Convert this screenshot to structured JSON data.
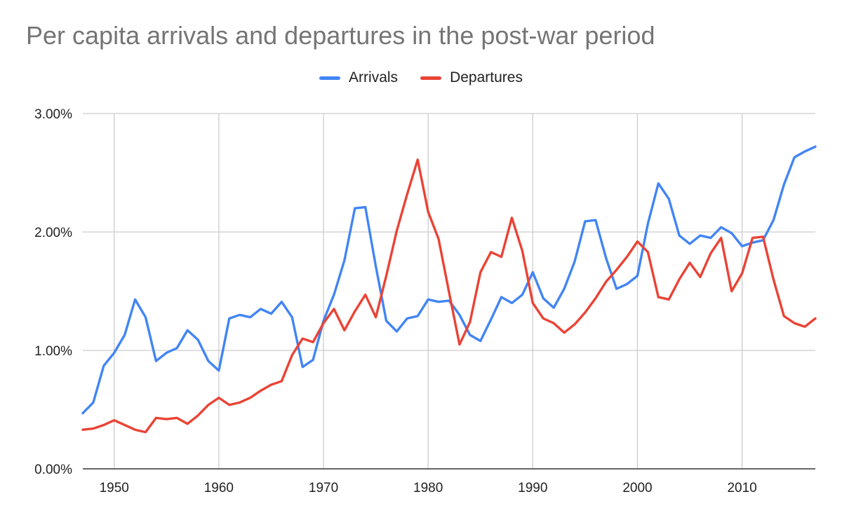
{
  "chart_data": {
    "type": "line",
    "title": "Per capita arrivals and departures in the post-war period",
    "xlabel": "",
    "ylabel": "",
    "xlim": [
      1947,
      2017
    ],
    "ylim": [
      0,
      0.03
    ],
    "x_ticks": [
      1950,
      1960,
      1970,
      1980,
      1990,
      2000,
      2010
    ],
    "y_ticks": [
      "0.00%",
      "1.00%",
      "2.00%",
      "3.00%"
    ],
    "y_tick_values": [
      0,
      0.01,
      0.02,
      0.03
    ],
    "legend_position": "top",
    "grid": true,
    "x": [
      1947,
      1948,
      1949,
      1950,
      1951,
      1952,
      1953,
      1954,
      1955,
      1956,
      1957,
      1958,
      1959,
      1960,
      1961,
      1962,
      1963,
      1964,
      1965,
      1966,
      1967,
      1968,
      1969,
      1970,
      1971,
      1972,
      1973,
      1974,
      1975,
      1976,
      1977,
      1978,
      1979,
      1980,
      1981,
      1982,
      1983,
      1984,
      1985,
      1986,
      1987,
      1988,
      1989,
      1990,
      1991,
      1992,
      1993,
      1994,
      1995,
      1996,
      1997,
      1998,
      1999,
      2000,
      2001,
      2002,
      2003,
      2004,
      2005,
      2006,
      2007,
      2008,
      2009,
      2010,
      2011,
      2012,
      2013,
      2014,
      2015,
      2016,
      2017
    ],
    "series": [
      {
        "name": "Arrivals",
        "color": "#4285f4",
        "values": [
          0.0047,
          0.0056,
          0.0087,
          0.0098,
          0.0113,
          0.0143,
          0.0128,
          0.0091,
          0.0098,
          0.0102,
          0.0117,
          0.0109,
          0.0091,
          0.0083,
          0.0127,
          0.013,
          0.0128,
          0.0135,
          0.0131,
          0.0141,
          0.0128,
          0.0086,
          0.0092,
          0.0125,
          0.0147,
          0.0176,
          0.022,
          0.0221,
          0.0171,
          0.0125,
          0.0116,
          0.0127,
          0.0129,
          0.0143,
          0.0141,
          0.0142,
          0.013,
          0.0113,
          0.0108,
          0.0126,
          0.0145,
          0.014,
          0.0147,
          0.0166,
          0.0144,
          0.0136,
          0.0152,
          0.0175,
          0.0209,
          0.021,
          0.0178,
          0.0152,
          0.0156,
          0.0163,
          0.0207,
          0.0241,
          0.0228,
          0.0197,
          0.019,
          0.0197,
          0.0195,
          0.0204,
          0.0199,
          0.0188,
          0.0191,
          0.0193,
          0.021,
          0.024,
          0.0263,
          0.0268,
          0.0272
        ]
      },
      {
        "name": "Departures",
        "color": "#ea4335",
        "values": [
          0.0033,
          0.0034,
          0.0037,
          0.0041,
          0.0037,
          0.0033,
          0.0031,
          0.0043,
          0.0042,
          0.0043,
          0.0038,
          0.0045,
          0.0054,
          0.006,
          0.0054,
          0.0056,
          0.006,
          0.0066,
          0.0071,
          0.0074,
          0.0096,
          0.011,
          0.0107,
          0.0123,
          0.0135,
          0.0117,
          0.0133,
          0.0147,
          0.0128,
          0.0163,
          0.0201,
          0.0232,
          0.0261,
          0.0217,
          0.0194,
          0.0149,
          0.0105,
          0.0124,
          0.0166,
          0.0183,
          0.0179,
          0.0212,
          0.0184,
          0.014,
          0.0127,
          0.0123,
          0.0115,
          0.0122,
          0.0132,
          0.0144,
          0.0158,
          0.0168,
          0.0179,
          0.0192,
          0.0183,
          0.0145,
          0.0143,
          0.016,
          0.0174,
          0.0162,
          0.0182,
          0.0195,
          0.015,
          0.0165,
          0.0195,
          0.0196,
          0.016,
          0.0129,
          0.0123,
          0.012,
          0.0127
        ]
      }
    ]
  }
}
